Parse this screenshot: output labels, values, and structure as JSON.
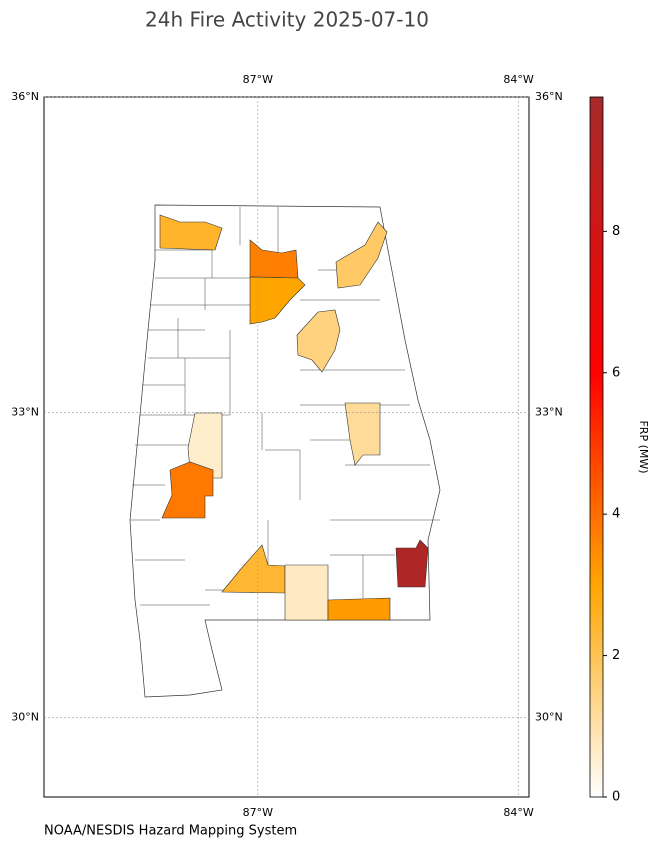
{
  "chart_data": {
    "type": "map",
    "title": "24h Fire Activity 2025-07-10",
    "credit": "NOAA/NESDIS Hazard Mapping System",
    "lonlim": [
      -89.46,
      -83.88
    ],
    "latlim": [
      29.2,
      36.0
    ],
    "lonticks": [
      {
        "value": -87,
        "label": "87°W"
      },
      {
        "value": -84,
        "label": "84°W"
      }
    ],
    "latticks": [
      {
        "value": 36,
        "label": "36°N"
      },
      {
        "value": 33,
        "label": "33°N"
      },
      {
        "value": 30,
        "label": "30°N"
      }
    ],
    "grid": true,
    "frp_values": [
      2.5,
      3.7,
      3.0,
      1.8,
      1.5,
      1.2,
      0.6,
      3.8,
      2.4,
      0.7,
      3.2,
      9.5
    ],
    "colorbar": {
      "label": "FRP (MW)",
      "clim": [
        0,
        9.9
      ],
      "ticks": [
        0,
        2,
        4,
        6,
        8
      ],
      "colormap": [
        [
          0,
          "#ffffff"
        ],
        [
          3,
          "#ffa500"
        ],
        [
          6,
          "#ff0000"
        ],
        [
          9.9,
          "#a52a2a"
        ]
      ]
    }
  }
}
